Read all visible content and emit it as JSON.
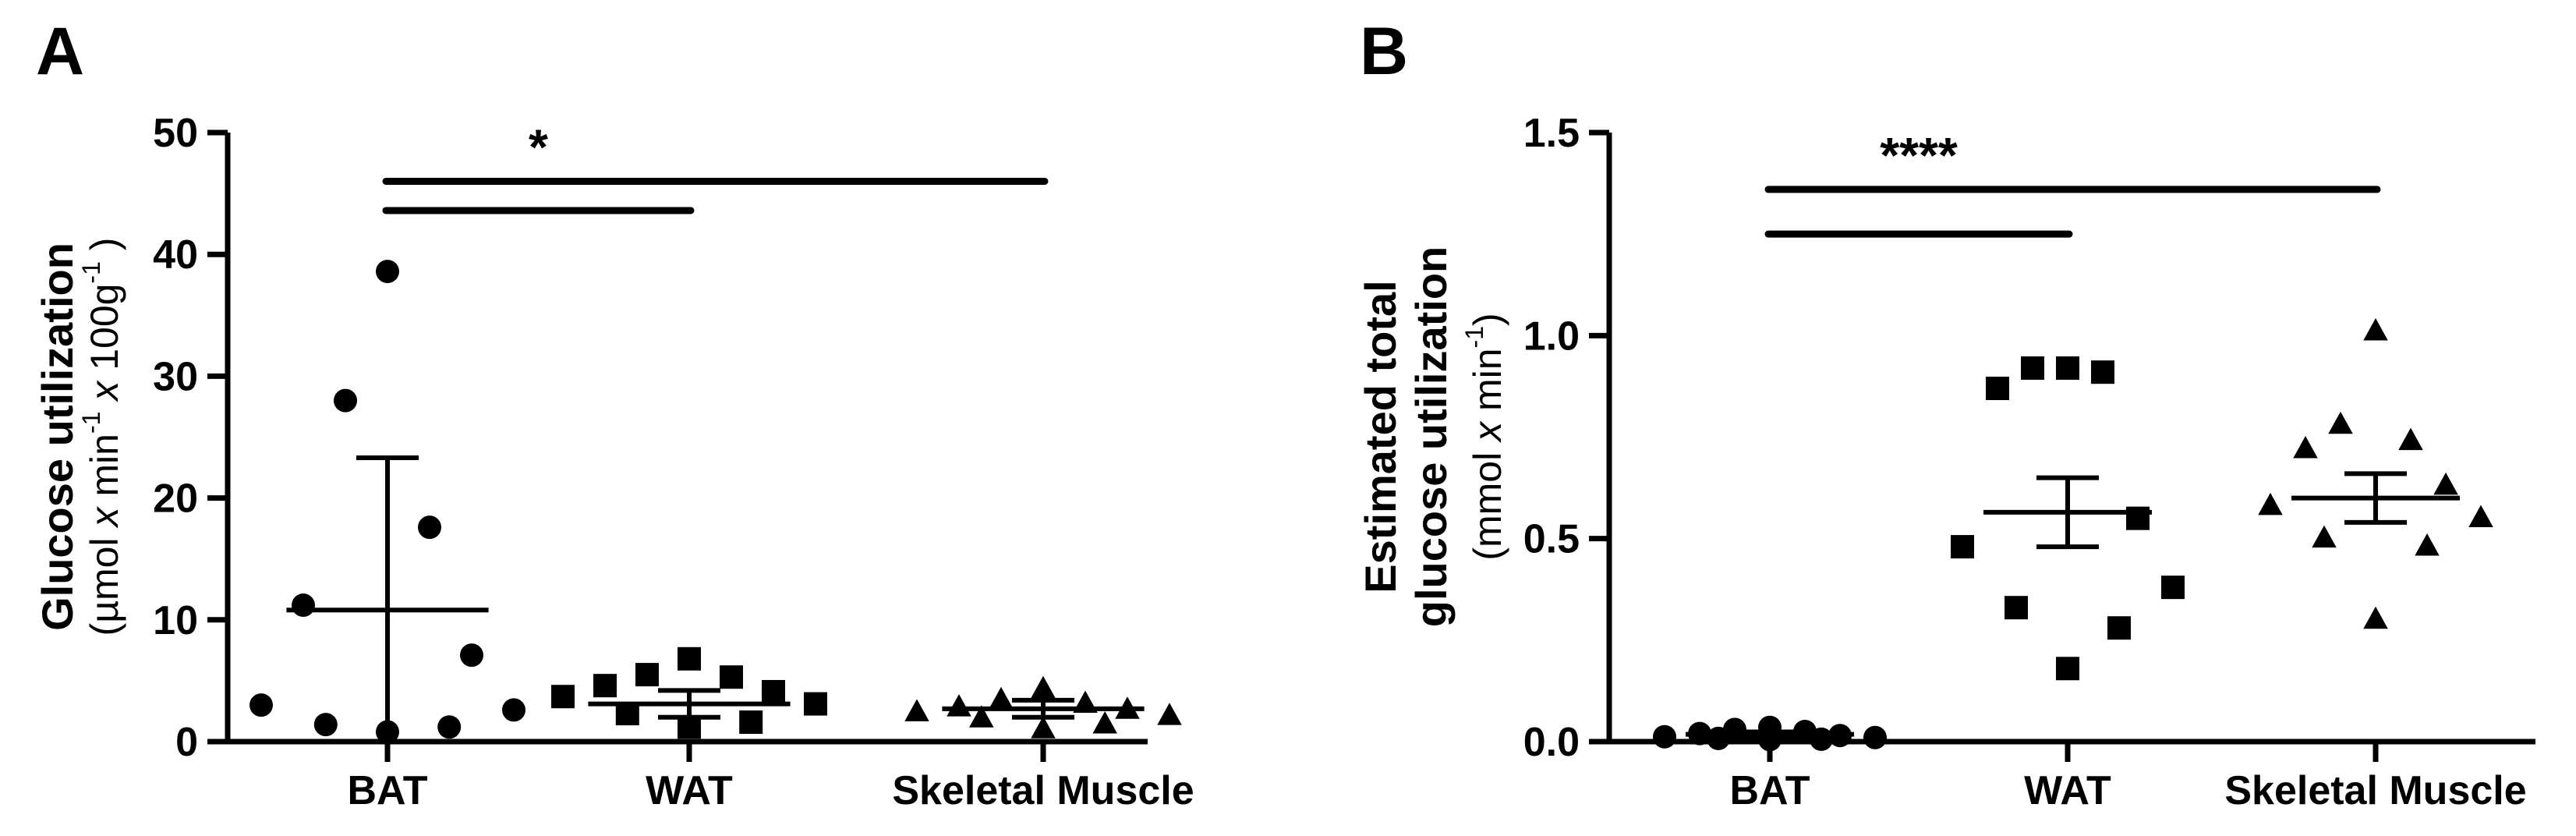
{
  "chart_data": [
    {
      "panel": "A",
      "type": "scatter",
      "ylabel_main": "Glucose utilization",
      "ylabel_unit_html": "(µmol <tspan font-style=\"italic\">x</tspan> min<tspan baseline-shift=\"super\" font-size=\"32\">-1</tspan> <tspan font-style=\"italic\">x</tspan> 100g<tspan baseline-shift=\"super\" font-size=\"32\">-1</tspan> )",
      "ylabel_unit": "(µmol x min-1 x 100g-1 )",
      "ylim": [
        0,
        50
      ],
      "yticks": [
        0,
        10,
        20,
        30,
        40,
        50
      ],
      "ytick_labels": [
        "0",
        "10",
        "20",
        "30",
        "40",
        "50"
      ],
      "categories": [
        "BAT",
        "WAT",
        "Skeletal Muscle"
      ],
      "marker_shapes": [
        "circle",
        "square",
        "triangle"
      ],
      "series": [
        {
          "category": "BAT",
          "points": [
            38.6,
            28.0,
            17.6,
            11.2,
            7.1,
            3.0,
            2.6,
            1.4,
            1.2,
            0.8
          ],
          "mean": 10.8,
          "err_low": -1.6,
          "err_high": 23.3
        },
        {
          "category": "WAT",
          "points": [
            6.8,
            5.5,
            5.3,
            4.6,
            4.1,
            3.7,
            3.1,
            2.3,
            1.6,
            1.2
          ],
          "mean": 3.1,
          "err_low": 2.0,
          "err_high": 4.2
        },
        {
          "category": "Skeletal Muscle",
          "points": [
            4.3,
            3.4,
            3.1,
            2.8,
            2.6,
            2.4,
            2.1,
            1.9,
            1.4,
            1.0
          ],
          "mean": 2.7,
          "err_low": 2.0,
          "err_high": 3.4
        }
      ],
      "significance": {
        "label": "*",
        "bars": [
          {
            "from": "BAT",
            "to": "WAT",
            "y": 43.6
          },
          {
            "from": "BAT",
            "to": "Skeletal Muscle",
            "y": 46.0
          }
        ]
      }
    },
    {
      "panel": "B",
      "type": "scatter",
      "ylabel_line1": "Estimated total",
      "ylabel_line2": "glucose utilization",
      "ylabel_unit_html": "(mmol <tspan font-style=\"italic\">x</tspan> min<tspan baseline-shift=\"super\" font-size=\"32\">-1</tspan>)",
      "ylabel_unit": "(mmol x min-1)",
      "ylim": [
        0,
        1.5
      ],
      "yticks": [
        0,
        0.5,
        1.0,
        1.5
      ],
      "ytick_labels": [
        "0.0",
        "0.5",
        "1.0",
        "1.5"
      ],
      "categories": [
        "BAT",
        "WAT",
        "Skeletal Muscle"
      ],
      "marker_shapes": [
        "circle",
        "square",
        "triangle"
      ],
      "series": [
        {
          "category": "BAT",
          "points": [
            0.035,
            0.03,
            0.025,
            0.02,
            0.015,
            0.012,
            0.01,
            0.008,
            0.006,
            0.005
          ],
          "mean": 0.018,
          "err_low": 0.012,
          "err_high": 0.024
        },
        {
          "category": "WAT",
          "points": [
            0.92,
            0.92,
            0.91,
            0.87,
            0.55,
            0.48,
            0.38,
            0.33,
            0.28,
            0.18
          ],
          "mean": 0.565,
          "err_low": 0.48,
          "err_high": 0.65
        },
        {
          "category": "Skeletal Muscle",
          "points": [
            1.01,
            0.78,
            0.74,
            0.72,
            0.63,
            0.58,
            0.55,
            0.5,
            0.48,
            0.3
          ],
          "mean": 0.6,
          "err_low": 0.54,
          "err_high": 0.66
        }
      ],
      "significance": {
        "label": "****",
        "bars": [
          {
            "from": "BAT",
            "to": "WAT",
            "y": 1.25
          },
          {
            "from": "BAT",
            "to": "Skeletal Muscle",
            "y": 1.36
          }
        ]
      }
    }
  ]
}
